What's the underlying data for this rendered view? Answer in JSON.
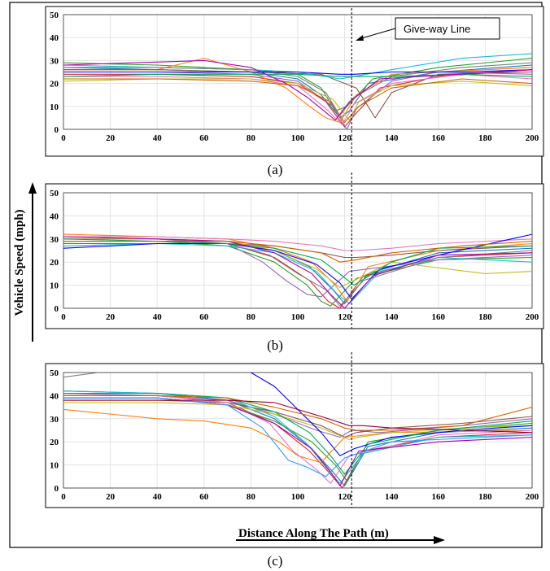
{
  "figure": {
    "ylabel": "Vehicle Speed (mph)",
    "xlabel": "Distance Along The Path (m)",
    "annotation": "Give-way Line",
    "captions": [
      "(a)",
      "(b)",
      "(c)"
    ]
  },
  "palette": [
    "#1f77b4",
    "#d62728",
    "#2ca02c",
    "#ff7f0e",
    "#9467bd",
    "#8c564b",
    "#e377c2",
    "#17becf",
    "#bcbd22",
    "#7f7f7f",
    "#0000ff",
    "#00aa55",
    "#aa00aa",
    "#cc6600",
    "#3399ff",
    "#990033"
  ],
  "chart_data": [
    {
      "type": "line",
      "panel": "(a)",
      "xlim": [
        0,
        200
      ],
      "ylim": [
        0,
        50
      ],
      "xticks": [
        0,
        20,
        40,
        60,
        80,
        100,
        120,
        140,
        160,
        180,
        200
      ],
      "yticks": [
        0,
        10,
        20,
        30,
        40,
        50
      ],
      "grid": true,
      "give_way_line_x": 123,
      "series": [
        {
          "x": [
            0,
            40,
            80,
            100,
            110,
            118,
            122,
            130,
            160,
            200
          ],
          "y": [
            27,
            26,
            25,
            22,
            15,
            5,
            8,
            20,
            25,
            28
          ]
        },
        {
          "x": [
            0,
            40,
            80,
            100,
            112,
            120,
            124,
            135,
            160,
            200
          ],
          "y": [
            24,
            24,
            23,
            20,
            12,
            1,
            6,
            18,
            23,
            26
          ]
        },
        {
          "x": [
            0,
            40,
            80,
            100,
            110,
            116,
            121,
            132,
            160,
            200
          ],
          "y": [
            29,
            28,
            26,
            24,
            18,
            8,
            10,
            22,
            27,
            31
          ]
        },
        {
          "x": [
            0,
            40,
            60,
            80,
            95,
            105,
            112,
            118,
            125,
            140,
            200
          ],
          "y": [
            26,
            26,
            31,
            25,
            18,
            10,
            5,
            3,
            15,
            24,
            27
          ]
        },
        {
          "x": [
            0,
            40,
            80,
            100,
            115,
            121,
            125,
            140,
            160,
            200
          ],
          "y": [
            25,
            25,
            24,
            21,
            10,
            0,
            9,
            21,
            25,
            24
          ]
        },
        {
          "x": [
            0,
            40,
            80,
            110,
            125,
            130,
            133,
            140,
            160,
            200
          ],
          "y": [
            26,
            26,
            25,
            24,
            18,
            10,
            5,
            16,
            24,
            25
          ]
        },
        {
          "x": [
            0,
            40,
            80,
            100,
            112,
            119,
            124,
            140,
            170,
            200
          ],
          "y": [
            23,
            23,
            22,
            19,
            9,
            2,
            11,
            20,
            24,
            22
          ]
        },
        {
          "x": [
            0,
            40,
            80,
            100,
            118,
            124,
            140,
            170,
            200
          ],
          "y": [
            28,
            27,
            26,
            25,
            22,
            23,
            26,
            31,
            33
          ]
        },
        {
          "x": [
            0,
            40,
            80,
            100,
            115,
            122,
            126,
            140,
            170,
            200
          ],
          "y": [
            21,
            22,
            22,
            20,
            13,
            4,
            12,
            19,
            21,
            19
          ]
        },
        {
          "x": [
            0,
            40,
            80,
            100,
            112,
            118,
            124,
            140,
            170,
            200
          ],
          "y": [
            27,
            27,
            26,
            23,
            16,
            6,
            14,
            23,
            27,
            29
          ]
        },
        {
          "x": [
            0,
            40,
            80,
            100,
            118,
            124,
            140,
            170,
            200
          ],
          "y": [
            25,
            25,
            25,
            25,
            24,
            24,
            25,
            25,
            26
          ]
        },
        {
          "x": [
            0,
            40,
            80,
            100,
            118,
            124,
            140,
            170,
            200
          ],
          "y": [
            23,
            24,
            24,
            24,
            23,
            23,
            23,
            24,
            23
          ]
        },
        {
          "x": [
            0,
            30,
            60,
            80,
            95,
            104,
            110,
            116,
            122,
            135,
            200
          ],
          "y": [
            28,
            29,
            30,
            27,
            20,
            14,
            9,
            4,
            12,
            22,
            26
          ]
        },
        {
          "x": [
            0,
            40,
            80,
            100,
            114,
            120,
            126,
            140,
            170,
            200
          ],
          "y": [
            22,
            22,
            21,
            19,
            12,
            3,
            10,
            18,
            22,
            20
          ]
        }
      ]
    },
    {
      "type": "line",
      "panel": "(b)",
      "xlim": [
        0,
        200
      ],
      "ylim": [
        0,
        50
      ],
      "xticks": [
        0,
        20,
        40,
        60,
        80,
        100,
        120,
        140,
        160,
        180,
        200
      ],
      "yticks": [
        0,
        10,
        20,
        30,
        40,
        50
      ],
      "grid": true,
      "give_way_line_x": 123,
      "series": [
        {
          "x": [
            0,
            40,
            70,
            90,
            105,
            115,
            120,
            130,
            160,
            200
          ],
          "y": [
            31,
            30,
            29,
            25,
            18,
            8,
            2,
            15,
            24,
            26
          ]
        },
        {
          "x": [
            0,
            40,
            70,
            90,
            105,
            113,
            118,
            128,
            160,
            200
          ],
          "y": [
            30,
            30,
            28,
            22,
            12,
            3,
            0,
            14,
            22,
            24
          ]
        },
        {
          "x": [
            0,
            40,
            70,
            90,
            104,
            110,
            114,
            125,
            160,
            200
          ],
          "y": [
            29,
            29,
            27,
            20,
            10,
            3,
            1,
            13,
            21,
            22
          ]
        },
        {
          "x": [
            0,
            40,
            70,
            90,
            106,
            116,
            121,
            130,
            160,
            200
          ],
          "y": [
            32,
            31,
            30,
            26,
            20,
            10,
            3,
            18,
            25,
            28
          ]
        },
        {
          "x": [
            0,
            40,
            70,
            85,
            95,
            104,
            110,
            122,
            160,
            200
          ],
          "y": [
            30,
            30,
            28,
            20,
            12,
            6,
            5,
            16,
            21,
            23
          ]
        },
        {
          "x": [
            0,
            40,
            70,
            90,
            110,
            120,
            125,
            140,
            160,
            200
          ],
          "y": [
            28,
            28,
            28,
            27,
            24,
            22,
            22,
            23,
            25,
            27
          ]
        },
        {
          "x": [
            0,
            40,
            70,
            90,
            110,
            120,
            125,
            140,
            160,
            200
          ],
          "y": [
            31,
            31,
            30,
            29,
            27,
            25,
            25,
            26,
            28,
            30
          ]
        },
        {
          "x": [
            0,
            40,
            70,
            90,
            108,
            117,
            122,
            135,
            160,
            200
          ],
          "y": [
            27,
            28,
            27,
            24,
            16,
            6,
            2,
            16,
            22,
            20
          ]
        },
        {
          "x": [
            0,
            40,
            70,
            90,
            108,
            118,
            124,
            140,
            180,
            200
          ],
          "y": [
            30,
            30,
            29,
            25,
            17,
            9,
            12,
            20,
            15,
            16
          ]
        },
        {
          "x": [
            0,
            40,
            70,
            88,
            100,
            112,
            118,
            128,
            160,
            200
          ],
          "y": [
            29,
            29,
            28,
            23,
            15,
            8,
            1,
            12,
            22,
            25
          ]
        },
        {
          "x": [
            0,
            40,
            70,
            90,
            108,
            118,
            123,
            135,
            160,
            200
          ],
          "y": [
            26,
            28,
            28,
            25,
            19,
            11,
            4,
            17,
            23,
            32
          ]
        },
        {
          "x": [
            0,
            40,
            70,
            90,
            110,
            119,
            124,
            140,
            160,
            200
          ],
          "y": [
            30,
            29,
            28,
            26,
            21,
            14,
            10,
            20,
            26,
            27
          ]
        },
        {
          "x": [
            0,
            40,
            70,
            90,
            106,
            114,
            120,
            132,
            160,
            200
          ],
          "y": [
            31,
            30,
            29,
            24,
            15,
            6,
            0,
            14,
            23,
            24
          ]
        },
        {
          "x": [
            0,
            40,
            70,
            90,
            110,
            118,
            125,
            140,
            170,
            200
          ],
          "y": [
            29,
            29,
            29,
            27,
            24,
            20,
            21,
            24,
            27,
            29
          ]
        }
      ]
    },
    {
      "type": "line",
      "panel": "(c)",
      "xlim": [
        0,
        200
      ],
      "ylim": [
        0,
        50
      ],
      "xticks": [
        0,
        20,
        40,
        60,
        80,
        100,
        120,
        140,
        160,
        180,
        200
      ],
      "yticks": [
        0,
        10,
        20,
        30,
        40,
        50
      ],
      "grid": true,
      "give_way_line_x": 123,
      "series": [
        {
          "x": [
            0,
            40,
            70,
            90,
            105,
            115,
            120,
            130,
            160,
            200
          ],
          "y": [
            42,
            41,
            38,
            30,
            18,
            7,
            1,
            18,
            24,
            26
          ]
        },
        {
          "x": [
            0,
            40,
            70,
            90,
            105,
            114,
            119,
            128,
            160,
            200
          ],
          "y": [
            40,
            40,
            37,
            28,
            16,
            6,
            0,
            16,
            22,
            24
          ]
        },
        {
          "x": [
            0,
            40,
            70,
            90,
            106,
            116,
            121,
            130,
            160,
            200
          ],
          "y": [
            39,
            39,
            36,
            29,
            20,
            10,
            3,
            20,
            25,
            28
          ]
        },
        {
          "x": [
            0,
            40,
            60,
            80,
            92,
            100,
            110,
            120,
            140,
            200
          ],
          "y": [
            34,
            30,
            29,
            26,
            20,
            14,
            11,
            22,
            24,
            25
          ]
        },
        {
          "x": [
            0,
            40,
            70,
            90,
            108,
            118,
            123,
            135,
            170,
            200
          ],
          "y": [
            41,
            40,
            38,
            32,
            25,
            22,
            25,
            24,
            27,
            30
          ]
        },
        {
          "x": [
            0,
            40,
            70,
            90,
            110,
            120,
            125,
            140,
            170,
            200
          ],
          "y": [
            38,
            38,
            37,
            33,
            27,
            22,
            24,
            26,
            28,
            31
          ]
        },
        {
          "x": [
            0,
            40,
            70,
            88,
            98,
            108,
            114,
            122,
            160,
            200
          ],
          "y": [
            40,
            40,
            37,
            28,
            16,
            8,
            2,
            14,
            23,
            25
          ]
        },
        {
          "x": [
            0,
            40,
            70,
            90,
            104,
            112,
            118,
            128,
            160,
            200
          ],
          "y": [
            42,
            41,
            39,
            31,
            19,
            9,
            2,
            15,
            22,
            23
          ]
        },
        {
          "x": [
            0,
            40,
            70,
            90,
            110,
            122,
            126,
            140,
            170,
            200
          ],
          "y": [
            37,
            37,
            36,
            32,
            26,
            21,
            22,
            24,
            26,
            27
          ]
        },
        {
          "x": [
            0,
            15
          ],
          "y": [
            48,
            50
          ]
        },
        {
          "x": [
            80,
            90,
            100,
            110,
            118,
            124,
            140,
            170,
            200
          ],
          "y": [
            50,
            44,
            34,
            24,
            14,
            17,
            22,
            25,
            27
          ]
        },
        {
          "x": [
            0,
            40,
            70,
            90,
            105,
            114,
            120,
            130,
            160,
            200
          ],
          "y": [
            41,
            41,
            39,
            33,
            24,
            14,
            6,
            19,
            25,
            29
          ]
        },
        {
          "x": [
            0,
            40,
            70,
            90,
            106,
            114,
            118,
            126,
            160,
            200
          ],
          "y": [
            39,
            39,
            36,
            28,
            17,
            7,
            1,
            16,
            20,
            22
          ]
        },
        {
          "x": [
            0,
            40,
            70,
            90,
            110,
            120,
            125,
            140,
            170,
            200
          ],
          "y": [
            40,
            40,
            39,
            35,
            30,
            26,
            25,
            25,
            27,
            35
          ]
        },
        {
          "x": [
            0,
            40,
            70,
            85,
            96,
            104,
            112,
            120,
            140,
            200
          ],
          "y": [
            39,
            39,
            36,
            26,
            12,
            9,
            5,
            13,
            20,
            23
          ]
        },
        {
          "x": [
            0,
            40,
            70,
            90,
            110,
            122,
            128,
            140,
            170,
            200
          ],
          "y": [
            38,
            38,
            38,
            37,
            31,
            27,
            27,
            26,
            25,
            24
          ]
        }
      ]
    }
  ]
}
